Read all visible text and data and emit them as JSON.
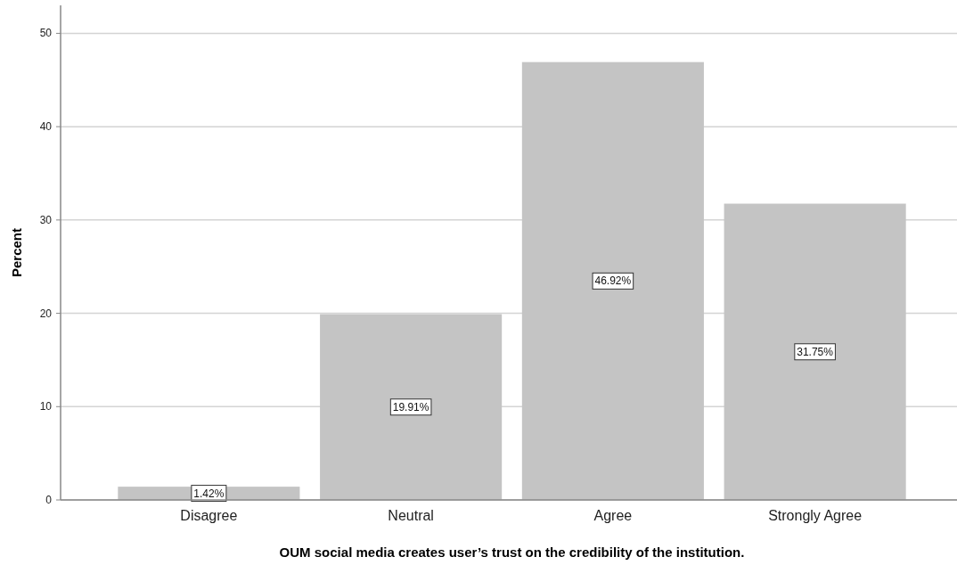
{
  "chart_data": {
    "type": "bar",
    "xlabel": "OUM social media creates user’s trust on the credibility of the institution.",
    "ylabel": "Percent",
    "categories": [
      "Disagree",
      "Neutral",
      "Agree",
      "Strongly Agree"
    ],
    "values": [
      1.42,
      19.91,
      46.92,
      31.75
    ],
    "value_labels": [
      "1.42%",
      "19.91%",
      "46.92%",
      "31.75%"
    ],
    "color": "#c4c4c4",
    "ylim": [
      0,
      53
    ],
    "yticks": [
      0,
      10,
      20,
      30,
      40,
      50
    ],
    "grid": "y"
  }
}
